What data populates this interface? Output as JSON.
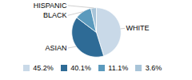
{
  "chart_data": {
    "type": "pie",
    "categories": [
      "WHITE",
      "ASIAN",
      "BLACK",
      "HISPANIC"
    ],
    "values": [
      45.2,
      40.1,
      11.1,
      3.6
    ],
    "value_labels": [
      "45.2%",
      "40.1%",
      "11.1%",
      "3.6%"
    ],
    "colors": [
      "#c9d9e8",
      "#2e6b96",
      "#5b9abd",
      "#a8c4d8"
    ],
    "legend": "bottom"
  }
}
